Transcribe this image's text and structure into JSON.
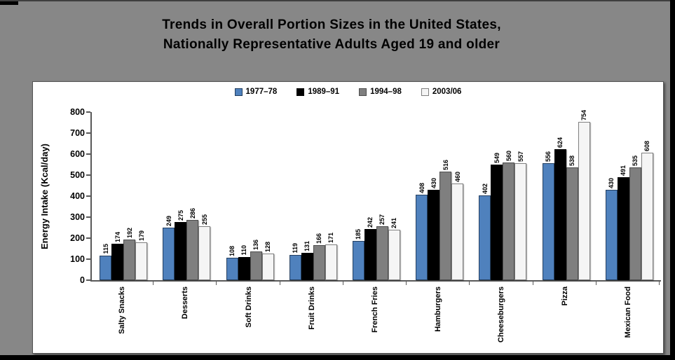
{
  "slide": {
    "title_line1": "Trends in Overall Portion Sizes in the United States,",
    "title_line2": "Nationally Representative Adults Aged 19 and older"
  },
  "chart_data": {
    "type": "bar",
    "title": "Trends in Overall Portion Sizes in the United States, Nationally Representative Adults Aged 19 and older",
    "xlabel": "",
    "ylabel": "Energy Intake (Kcal/day)",
    "ylim": [
      0,
      800
    ],
    "ytick_step": 100,
    "grid": false,
    "legend_position": "top-center",
    "categories": [
      "Salty Snacks",
      "Desserts",
      "Soft Drinks",
      "Fruit Drinks",
      "French Fries",
      "Hamburgers",
      "Cheeseburgers",
      "Pizza",
      "Mexican Food"
    ],
    "series": [
      {
        "name": "1977–78",
        "color": "#4f81bd",
        "border_color": "#243f60",
        "values": [
          115,
          249,
          108,
          119,
          185,
          408,
          402,
          556,
          430
        ]
      },
      {
        "name": "1989–91",
        "color": "#000000",
        "border_color": "#000000",
        "values": [
          174,
          275,
          110,
          131,
          242,
          430,
          549,
          624,
          491
        ]
      },
      {
        "name": "1994–98",
        "color": "#7f7f7f",
        "border_color": "#4d4d4d",
        "values": [
          192,
          286,
          136,
          166,
          257,
          516,
          560,
          538,
          535
        ]
      },
      {
        "name": "2003/06",
        "color": "#f5f5f5",
        "border_color": "#7f7f7f",
        "values": [
          179,
          255,
          128,
          171,
          241,
          460,
          557,
          754,
          608
        ]
      }
    ]
  },
  "colors": {
    "slide_background": "#878787",
    "panel_background": "#ffffff",
    "axis": "#595959",
    "title_text": "#000000"
  }
}
